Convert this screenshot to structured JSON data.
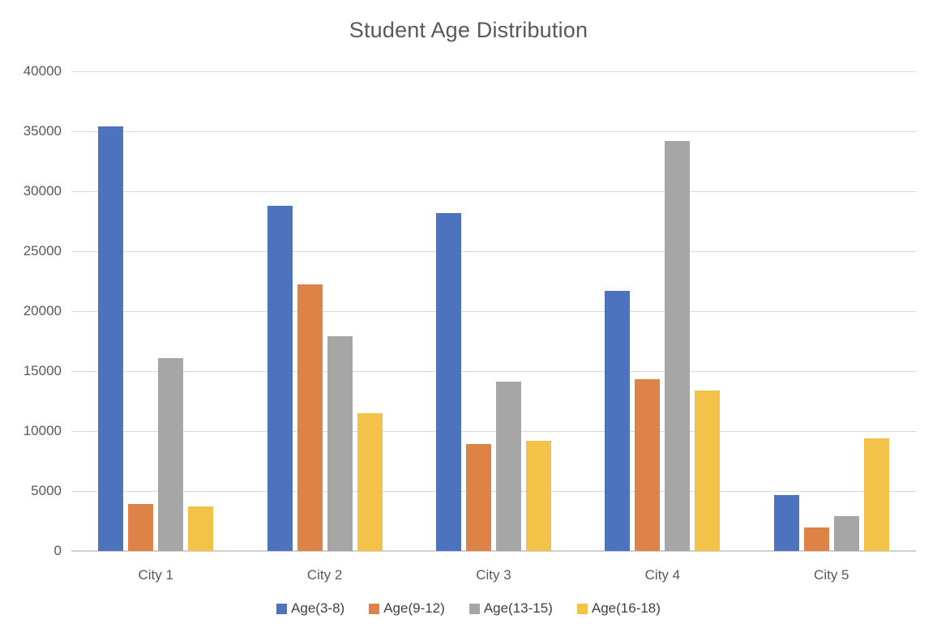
{
  "title": "Student Age Distribution",
  "chart_data": {
    "type": "bar",
    "title": "Student Age Distribution",
    "categories": [
      "City 1",
      "City 2",
      "City 3",
      "City 4",
      "City 5"
    ],
    "series": [
      {
        "name": "Age(3-8)",
        "color": "#4d73be",
        "values": [
          35400,
          28800,
          28200,
          21700,
          4650
        ]
      },
      {
        "name": "Age(9-12)",
        "color": "#dd8347",
        "values": [
          3900,
          22200,
          8900,
          14300,
          1950
        ]
      },
      {
        "name": "Age(13-15)",
        "color": "#a6a6a6",
        "values": [
          16100,
          17900,
          14100,
          34200,
          2900
        ]
      },
      {
        "name": "Age(16-18)",
        "color": "#f2c348",
        "values": [
          3700,
          11500,
          9200,
          13400,
          9400
        ]
      }
    ],
    "ylim": [
      0,
      40000
    ],
    "yticks": [
      0,
      5000,
      10000,
      15000,
      20000,
      25000,
      30000,
      35000,
      40000
    ],
    "xlabel": "",
    "ylabel": "",
    "grid": true,
    "legend_position": "bottom"
  },
  "style_colors": {
    "gridline": "#d9d9d9",
    "zero_line": "#d0d0d0",
    "title_text": "#595959",
    "tick_text": "#595959",
    "legend_text": "#404040"
  }
}
